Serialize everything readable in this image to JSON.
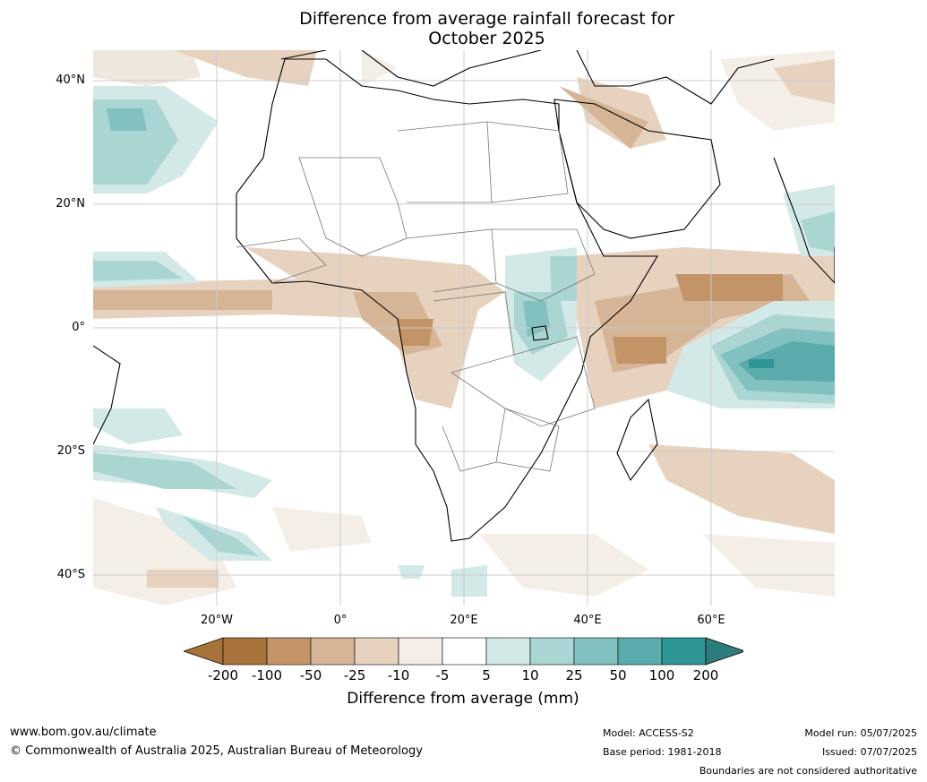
{
  "title": {
    "line1": "Difference from average rainfall forecast for",
    "line2": "October 2025"
  },
  "map": {
    "lat_labels": [
      "40°N",
      "20°N",
      "0°",
      "20°S",
      "40°S"
    ],
    "lon_labels": [
      "20°W",
      "0°",
      "20°E",
      "40°E",
      "60°E"
    ]
  },
  "colorbar": {
    "title": "Difference from average (mm)",
    "tick_labels": [
      "-200",
      "-100",
      "-50",
      "-25",
      "-10",
      "-5",
      "5",
      "10",
      "25",
      "50",
      "100",
      "200"
    ],
    "colors": [
      "#a8733b",
      "#a8733b",
      "#c29468",
      "#d5b596",
      "#e6d2bf",
      "#f4eee7",
      "#ffffff",
      "#d3e9e7",
      "#a9d5d3",
      "#82c1c0",
      "#5aabab",
      "#2e9696",
      "#2e7d7d"
    ]
  },
  "footer": {
    "website": "www.bom.gov.au/climate",
    "copyright": "© Commonwealth of Australia 2025, Australian Bureau of Meteorology",
    "model": "Model: ACCESS-S2",
    "base_period": "Base period: 1981-2018",
    "model_run": "Model run: 05/07/2025",
    "issued": "Issued: 07/07/2025",
    "disclaimer": "Boundaries are not considered authoritative"
  }
}
